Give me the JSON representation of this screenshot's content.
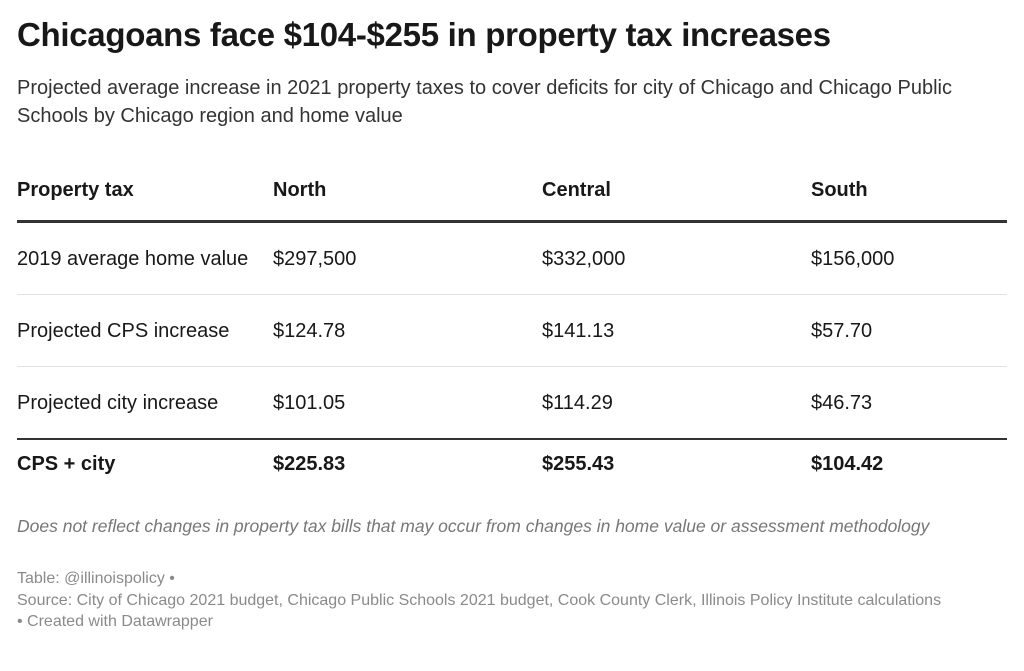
{
  "title": "Chicagoans face $104-$255 in property tax increases",
  "subtitle": "Projected average increase in 2021 property taxes to cover deficits for city of Chicago and Chicago Public Schools by Chicago region and home value",
  "chart_data": {
    "type": "table",
    "columns": [
      "Property tax",
      "North",
      "Central",
      "South"
    ],
    "rows": [
      [
        "2019 average home value",
        "$297,500",
        "$332,000",
        "$156,000"
      ],
      [
        "Projected CPS increase",
        "$124.78",
        "$141.13",
        "$57.70"
      ],
      [
        "Projected city increase",
        "$101.05",
        "$114.29",
        "$46.73"
      ],
      [
        "CPS + city",
        "$225.83",
        "$255.43",
        "$104.42"
      ]
    ]
  },
  "notes": "Does not reflect changes in property tax bills that may occur from changes in home value or assessment methodology",
  "footer": {
    "byline": "Table: @illinoispolicy •",
    "source": "Source: City of Chicago 2021 budget, Chicago Public Schools 2021 budget, Cook County Clerk, Illinois Policy Institute calculations",
    "credit": " • Created with Datawrapper"
  }
}
